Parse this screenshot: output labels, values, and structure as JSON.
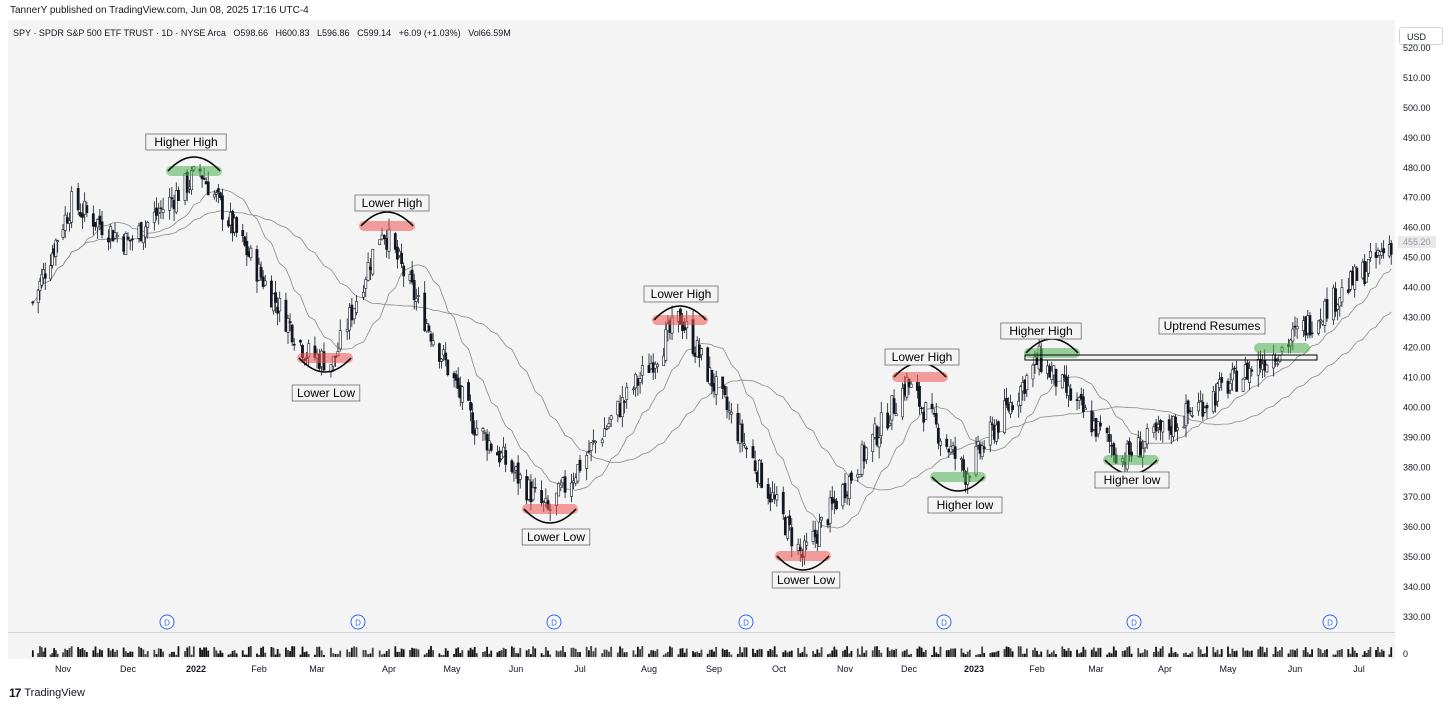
{
  "publisher_line": "TannerY published on TradingView.com, Jun 08, 2025 17:16 UTC-4",
  "header": {
    "symbol": "SPY · SPDR S&P 500 ETF TRUST · 1D · NYSE Arca",
    "open": "O598.66",
    "high": "H600.83",
    "low": "L596.86",
    "close": "C599.14",
    "change": "+6.09 (+1.03%)",
    "volume": "Vol66.59M"
  },
  "currency_button": "USD",
  "footer": {
    "logo_icon": "tradingview-logo-icon",
    "brand": "TradingView"
  },
  "colors": {
    "up_candle": "#131722",
    "highlight_red": "#ef5350",
    "highlight_green": "#4caf50",
    "ma_line": "#8a8a8a",
    "dividend_marker": "#2962ff"
  },
  "chart_data": {
    "type": "candlestick",
    "price_axis": {
      "ticks": [
        "520.00",
        "510.00",
        "500.00",
        "490.00",
        "480.00",
        "470.00",
        "460.00",
        "450.00",
        "440.00",
        "430.00",
        "420.00",
        "410.00",
        "400.00",
        "390.00",
        "380.00",
        "370.00",
        "360.00",
        "350.00",
        "340.00",
        "330.00"
      ],
      "range": [
        325,
        527
      ],
      "last_price_label": "455.20"
    },
    "time_axis": [
      "Nov",
      "Dec",
      "2022",
      "Feb",
      "Mar",
      "Apr",
      "May",
      "Jun",
      "Jul",
      "Aug",
      "Sep",
      "Oct",
      "Nov",
      "Dec",
      "2023",
      "Feb",
      "Mar",
      "Apr",
      "May",
      "Jun",
      "Jul"
    ],
    "volume_axis_label": "0",
    "approx_close_path": [
      {
        "date": "2021-10-15",
        "close": 435
      },
      {
        "date": "2021-11-05",
        "close": 468
      },
      {
        "date": "2021-12-01",
        "close": 455
      },
      {
        "date": "2022-01-03",
        "close": 479
      },
      {
        "date": "2022-02-24",
        "close": 418
      },
      {
        "date": "2022-03-08",
        "close": 415
      },
      {
        "date": "2022-03-29",
        "close": 460
      },
      {
        "date": "2022-05-11",
        "close": 395
      },
      {
        "date": "2022-06-16",
        "close": 365
      },
      {
        "date": "2022-08-16",
        "close": 430
      },
      {
        "date": "2022-10-12",
        "close": 350
      },
      {
        "date": "2022-11-30",
        "close": 408
      },
      {
        "date": "2022-12-28",
        "close": 378
      },
      {
        "date": "2023-02-02",
        "close": 416
      },
      {
        "date": "2023-03-13",
        "close": 383
      },
      {
        "date": "2023-05-26",
        "close": 420
      },
      {
        "date": "2023-07-18",
        "close": 455
      }
    ],
    "annotations": [
      {
        "label": "Higher High",
        "kind": "high",
        "color": "green"
      },
      {
        "label": "Lower High",
        "kind": "high",
        "color": "red"
      },
      {
        "label": "Lower Low",
        "kind": "low",
        "color": "red"
      },
      {
        "label": "Lower High",
        "kind": "high",
        "color": "red"
      },
      {
        "label": "Lower Low",
        "kind": "low",
        "color": "red"
      },
      {
        "label": "Lower Low",
        "kind": "low",
        "color": "red"
      },
      {
        "label": "Lower High",
        "kind": "high",
        "color": "red"
      },
      {
        "label": "Higher low",
        "kind": "low",
        "color": "green"
      },
      {
        "label": "Higher High",
        "kind": "high",
        "color": "green"
      },
      {
        "label": "Higher low",
        "kind": "low",
        "color": "green"
      },
      {
        "label": "Uptrend Resumes",
        "kind": "breakout",
        "color": "green"
      }
    ],
    "dividend_marker_label": "D",
    "dividend_marker_count": 7
  }
}
